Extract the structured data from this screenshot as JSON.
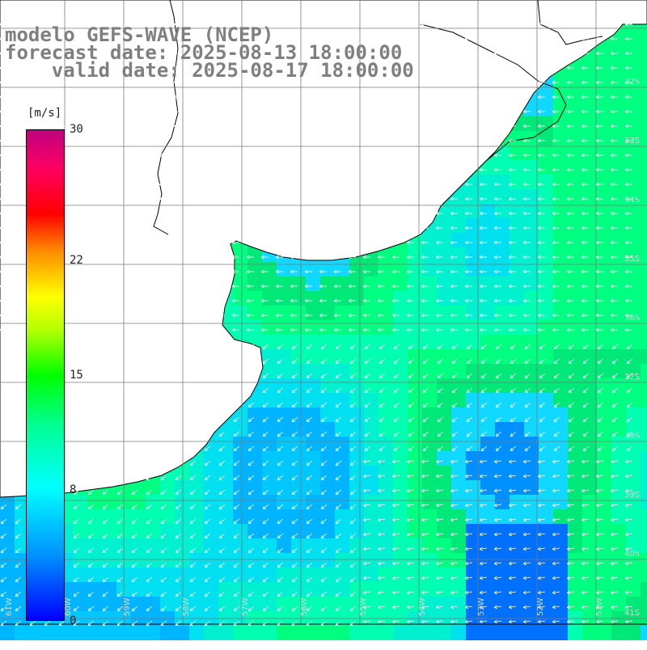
{
  "header": {
    "line1": "modelo GEFS-WAVE (NCEP)",
    "line2": "forecast date: 2025-08-13 18:00:00",
    "line3": "    valid date: 2025-08-17 18:00:00"
  },
  "colorbar": {
    "unit": "[m/s]",
    "ticks": [
      {
        "label": "30",
        "value": 30
      },
      {
        "label": "22",
        "value": 22
      },
      {
        "label": "15",
        "value": 15
      },
      {
        "label": "8",
        "value": 8
      },
      {
        "label": "0",
        "value": 0
      }
    ],
    "min": 0,
    "max": 30
  },
  "map": {
    "lon_labels": [
      "61W",
      "60W",
      "59W",
      "58W",
      "57W",
      "56W",
      "55W",
      "54W",
      "53W",
      "52W",
      "51W"
    ],
    "lat_labels": [
      "32S",
      "33S",
      "34S",
      "35S",
      "36S",
      "37S",
      "38S",
      "39S",
      "40S",
      "41S"
    ],
    "colors": {
      "land": "#ffffff",
      "coast": "#000000",
      "grid": "#7a7a7a",
      "arrow": "#ffffff"
    }
  }
}
